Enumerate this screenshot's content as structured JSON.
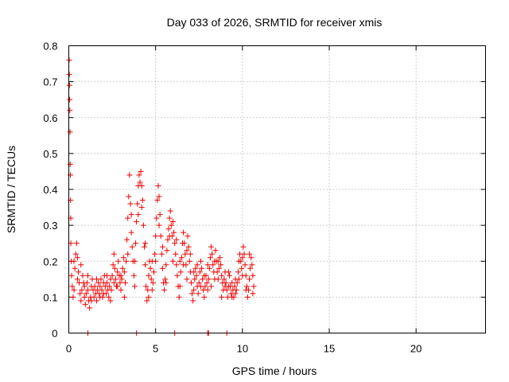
{
  "chart_data": {
    "type": "scatter",
    "title": "Day 033 of 2026, SRMTID for receiver xmis",
    "xlabel": "GPS time / hours",
    "ylabel": "SRMTID / TECUs",
    "xlim": [
      0,
      24
    ],
    "ylim": [
      0,
      0.8
    ],
    "xticks": [
      0,
      5,
      10,
      15,
      20
    ],
    "xtick_labels": [
      "0",
      "5",
      "10",
      "15",
      "20"
    ],
    "yticks": [
      0,
      0.1,
      0.2,
      0.3,
      0.4,
      0.5,
      0.6,
      0.7,
      0.8
    ],
    "ytick_labels": [
      "0",
      "0.1",
      "0.2",
      "0.3",
      "0.4",
      "0.5",
      "0.6",
      "0.7",
      "0.8"
    ],
    "grid": true,
    "marker": "+",
    "color": "#ee0000",
    "series": [
      {
        "name": "xmis",
        "points": [
          [
            0.02,
            0.76
          ],
          [
            0.03,
            0.72
          ],
          [
            0.04,
            0.69
          ],
          [
            0.05,
            0.65
          ],
          [
            0.06,
            0.62
          ],
          [
            0.07,
            0.56
          ],
          [
            0.08,
            0.47
          ],
          [
            0.09,
            0.44
          ],
          [
            0.1,
            0.37
          ],
          [
            0.11,
            0.32
          ],
          [
            0.12,
            0.25
          ],
          [
            0.14,
            0.2
          ],
          [
            0.16,
            0.16
          ],
          [
            0.2,
            0.13
          ],
          [
            0.25,
            0.1
          ],
          [
            0.3,
            0.12
          ],
          [
            0.35,
            0.18
          ],
          [
            0.4,
            0.22
          ],
          [
            0.45,
            0.25
          ],
          [
            0.5,
            0.21
          ],
          [
            0.55,
            0.17
          ],
          [
            0.6,
            0.14
          ],
          [
            0.65,
            0.11
          ],
          [
            0.7,
            0.09
          ],
          [
            0.75,
            0.12
          ],
          [
            0.8,
            0.16
          ],
          [
            0.85,
            0.14
          ],
          [
            0.9,
            0.1
          ],
          [
            0.95,
            0.08
          ],
          [
            1.0,
            0.11
          ],
          [
            1.05,
            0.14
          ],
          [
            1.1,
            0.12
          ],
          [
            1.15,
            0.09
          ],
          [
            1.2,
            0.07
          ],
          [
            1.25,
            0.1
          ],
          [
            1.3,
            0.13
          ],
          [
            1.35,
            0.15
          ],
          [
            1.4,
            0.12
          ],
          [
            1.45,
            0.1
          ],
          [
            1.5,
            0.13
          ],
          [
            1.55,
            0.11
          ],
          [
            1.6,
            0.09
          ],
          [
            1.65,
            0.12
          ],
          [
            1.7,
            0.14
          ],
          [
            1.75,
            0.11
          ],
          [
            1.8,
            0.13
          ],
          [
            1.85,
            0.15
          ],
          [
            1.9,
            0.12
          ],
          [
            1.95,
            0.1
          ],
          [
            2.0,
            0.14
          ],
          [
            2.05,
            0.16
          ],
          [
            2.1,
            0.13
          ],
          [
            2.15,
            0.11
          ],
          [
            2.2,
            0.14
          ],
          [
            2.25,
            0.12
          ],
          [
            2.3,
            0.1
          ],
          [
            2.35,
            0.13
          ],
          [
            2.4,
            0.15
          ],
          [
            2.45,
            0.12
          ],
          [
            2.5,
            0.16
          ],
          [
            2.55,
            0.19
          ],
          [
            2.6,
            0.22
          ],
          [
            2.65,
            0.18
          ],
          [
            2.7,
            0.15
          ],
          [
            2.75,
            0.13
          ],
          [
            2.8,
            0.17
          ],
          [
            2.85,
            0.2
          ],
          [
            2.9,
            0.16
          ],
          [
            2.95,
            0.14
          ],
          [
            3.0,
            0.12
          ],
          [
            3.05,
            0.15
          ],
          [
            3.1,
            0.18
          ],
          [
            3.15,
            0.21
          ],
          [
            3.2,
            0.17
          ],
          [
            3.25,
            0.14
          ],
          [
            3.3,
            0.2
          ],
          [
            3.35,
            0.26
          ],
          [
            3.4,
            0.32
          ],
          [
            3.45,
            0.38
          ],
          [
            3.5,
            0.44
          ],
          [
            3.55,
            0.36
          ],
          [
            3.6,
            0.28
          ],
          [
            3.65,
            0.24
          ],
          [
            3.7,
            0.2
          ],
          [
            3.75,
            0.16
          ],
          [
            3.8,
            0.2
          ],
          [
            3.85,
            0.25
          ],
          [
            3.9,
            0.31
          ],
          [
            3.95,
            0.36
          ],
          [
            4.0,
            0.41
          ],
          [
            4.05,
            0.44
          ],
          [
            4.1,
            0.42
          ],
          [
            4.15,
            0.45
          ],
          [
            4.2,
            0.41
          ],
          [
            4.25,
            0.37
          ],
          [
            4.3,
            0.3
          ],
          [
            4.35,
            0.24
          ],
          [
            4.4,
            0.19
          ],
          [
            4.45,
            0.13
          ],
          [
            4.5,
            0.09
          ],
          [
            4.55,
            0.12
          ],
          [
            4.6,
            0.16
          ],
          [
            4.65,
            0.2
          ],
          [
            4.7,
            0.18
          ],
          [
            4.75,
            0.15
          ],
          [
            4.8,
            0.12
          ],
          [
            4.85,
            0.14
          ],
          [
            4.9,
            0.17
          ],
          [
            4.95,
            0.22
          ],
          [
            5.0,
            0.27
          ],
          [
            5.05,
            0.32
          ],
          [
            5.1,
            0.37
          ],
          [
            5.15,
            0.41
          ],
          [
            5.2,
            0.38
          ],
          [
            5.25,
            0.33
          ],
          [
            5.3,
            0.27
          ],
          [
            5.35,
            0.22
          ],
          [
            5.4,
            0.18
          ],
          [
            5.45,
            0.14
          ],
          [
            5.5,
            0.12
          ],
          [
            5.55,
            0.15
          ],
          [
            5.6,
            0.19
          ],
          [
            5.65,
            0.23
          ],
          [
            5.7,
            0.26
          ],
          [
            5.75,
            0.29
          ],
          [
            5.8,
            0.32
          ],
          [
            5.85,
            0.34
          ],
          [
            5.9,
            0.3
          ],
          [
            5.95,
            0.27
          ],
          [
            6.0,
            0.31
          ],
          [
            6.05,
            0.28
          ],
          [
            6.1,
            0.25
          ],
          [
            6.15,
            0.22
          ],
          [
            6.2,
            0.19
          ],
          [
            6.25,
            0.16
          ],
          [
            6.3,
            0.13
          ],
          [
            6.35,
            0.1
          ],
          [
            6.4,
            0.13
          ],
          [
            6.45,
            0.17
          ],
          [
            6.5,
            0.21
          ],
          [
            6.55,
            0.25
          ],
          [
            6.6,
            0.28
          ],
          [
            6.65,
            0.25
          ],
          [
            6.7,
            0.22
          ],
          [
            6.75,
            0.19
          ],
          [
            6.8,
            0.23
          ],
          [
            6.85,
            0.27
          ],
          [
            6.9,
            0.24
          ],
          [
            6.95,
            0.2
          ],
          [
            7.0,
            0.17
          ],
          [
            7.05,
            0.14
          ],
          [
            7.1,
            0.11
          ],
          [
            7.15,
            0.09
          ],
          [
            7.2,
            0.12
          ],
          [
            7.25,
            0.15
          ],
          [
            7.3,
            0.18
          ],
          [
            7.35,
            0.16
          ],
          [
            7.4,
            0.13
          ],
          [
            7.45,
            0.11
          ],
          [
            7.5,
            0.14
          ],
          [
            7.55,
            0.17
          ],
          [
            7.6,
            0.2
          ],
          [
            7.65,
            0.18
          ],
          [
            7.7,
            0.15
          ],
          [
            7.75,
            0.12
          ],
          [
            7.8,
            0.1
          ],
          [
            7.85,
            0.13
          ],
          [
            7.9,
            0.16
          ],
          [
            7.95,
            0.14
          ],
          [
            8.0,
            0.12
          ],
          [
            8.05,
            0.15
          ],
          [
            8.1,
            0.18
          ],
          [
            8.15,
            0.21
          ],
          [
            8.2,
            0.24
          ],
          [
            8.25,
            0.22
          ],
          [
            8.3,
            0.19
          ],
          [
            8.35,
            0.17
          ],
          [
            8.4,
            0.2
          ],
          [
            8.45,
            0.23
          ],
          [
            8.5,
            0.2
          ],
          [
            8.55,
            0.17
          ],
          [
            8.6,
            0.15
          ],
          [
            8.65,
            0.18
          ],
          [
            8.7,
            0.21
          ],
          [
            8.75,
            0.19
          ],
          [
            8.8,
            0.16
          ],
          [
            8.85,
            0.14
          ],
          [
            8.9,
            0.12
          ],
          [
            8.95,
            0.15
          ],
          [
            9.0,
            0.17
          ],
          [
            9.05,
            0.14
          ],
          [
            9.1,
            0.12
          ],
          [
            9.15,
            0.1
          ],
          [
            9.2,
            0.13
          ],
          [
            9.25,
            0.16
          ],
          [
            9.3,
            0.13
          ],
          [
            9.35,
            0.11
          ],
          [
            9.4,
            0.14
          ],
          [
            9.45,
            0.12
          ],
          [
            9.5,
            0.1
          ],
          [
            9.55,
            0.13
          ],
          [
            9.6,
            0.15
          ],
          [
            9.65,
            0.12
          ],
          [
            9.7,
            0.14
          ],
          [
            9.75,
            0.17
          ],
          [
            9.8,
            0.2
          ],
          [
            9.85,
            0.22
          ],
          [
            9.9,
            0.2
          ],
          [
            9.95,
            0.18
          ],
          [
            10.0,
            0.21
          ],
          [
            10.05,
            0.24
          ],
          [
            10.1,
            0.22
          ],
          [
            10.15,
            0.19
          ],
          [
            10.2,
            0.16
          ],
          [
            10.25,
            0.13
          ],
          [
            10.3,
            0.1
          ],
          [
            10.35,
            0.12
          ],
          [
            10.4,
            0.15
          ],
          [
            10.45,
            0.18
          ],
          [
            10.5,
            0.21
          ],
          [
            10.55,
            0.19
          ],
          [
            10.6,
            0.16
          ],
          [
            10.65,
            0.13
          ],
          [
            0.3,
            0.2
          ],
          [
            0.5,
            0.15
          ],
          [
            0.7,
            0.19
          ],
          [
            0.9,
            0.13
          ],
          [
            1.1,
            0.16
          ],
          [
            1.3,
            0.09
          ],
          [
            1.6,
            0.15
          ],
          [
            1.8,
            0.1
          ],
          [
            2.0,
            0.11
          ],
          [
            2.2,
            0.16
          ],
          [
            2.4,
            0.09
          ],
          [
            2.6,
            0.14
          ],
          [
            2.8,
            0.13
          ],
          [
            3.0,
            0.16
          ],
          [
            3.2,
            0.1
          ],
          [
            3.4,
            0.22
          ],
          [
            3.6,
            0.33
          ],
          [
            3.8,
            0.13
          ],
          [
            4.0,
            0.33
          ],
          [
            4.2,
            0.35
          ],
          [
            4.4,
            0.25
          ],
          [
            4.6,
            0.1
          ],
          [
            4.8,
            0.2
          ],
          [
            5.0,
            0.2
          ],
          [
            5.2,
            0.3
          ],
          [
            5.4,
            0.24
          ],
          [
            5.6,
            0.14
          ],
          [
            5.8,
            0.27
          ],
          [
            6.0,
            0.2
          ],
          [
            6.2,
            0.26
          ],
          [
            6.4,
            0.2
          ],
          [
            6.6,
            0.19
          ],
          [
            6.8,
            0.15
          ],
          [
            7.0,
            0.22
          ],
          [
            7.2,
            0.17
          ],
          [
            7.4,
            0.19
          ],
          [
            7.6,
            0.13
          ],
          [
            7.8,
            0.16
          ],
          [
            8.0,
            0.19
          ],
          [
            8.2,
            0.13
          ],
          [
            8.4,
            0.15
          ],
          [
            8.6,
            0.2
          ],
          [
            8.8,
            0.1
          ],
          [
            9.0,
            0.13
          ],
          [
            9.2,
            0.17
          ],
          [
            9.4,
            0.1
          ],
          [
            9.6,
            0.11
          ],
          [
            9.8,
            0.15
          ],
          [
            10.0,
            0.16
          ],
          [
            10.2,
            0.12
          ],
          [
            10.4,
            0.22
          ],
          [
            10.6,
            0.11
          ],
          [
            1.1,
            0.0
          ],
          [
            3.9,
            0.0
          ],
          [
            6.1,
            0.0
          ],
          [
            8.0,
            0.0
          ],
          [
            8.05,
            0.0
          ],
          [
            9.1,
            0.0
          ]
        ]
      }
    ]
  }
}
